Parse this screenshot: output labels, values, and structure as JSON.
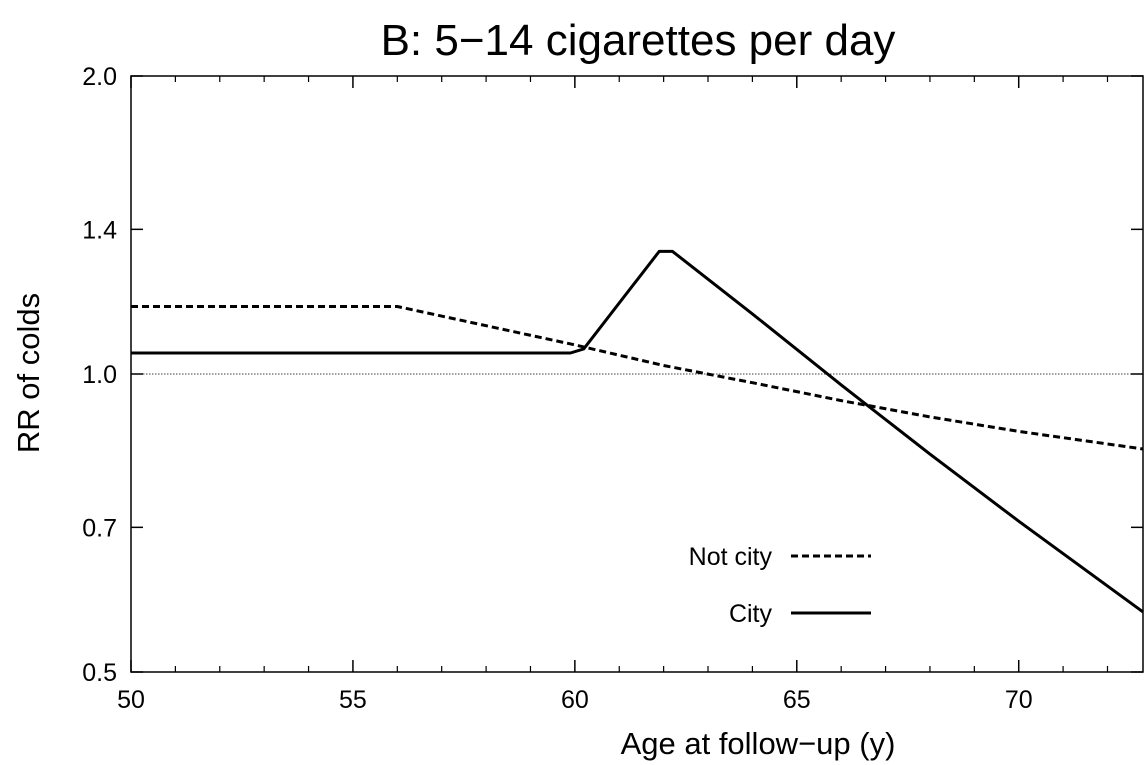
{
  "chart_data": {
    "type": "line",
    "title": "B: 5−14 cigarettes per day",
    "xlabel": "Age at follow−up (y)",
    "ylabel": "RR of colds",
    "xlim": [
      50,
      72.8
    ],
    "ylim": [
      0.5,
      2.0
    ],
    "y_scale": "log",
    "x_ticks": [
      50,
      55,
      60,
      65,
      70
    ],
    "x_tick_labels": [
      "50",
      "55",
      "60",
      "65",
      "70"
    ],
    "y_ticks": [
      0.5,
      0.7,
      1.0,
      1.4,
      2.0
    ],
    "y_tick_labels": [
      "0.5",
      "0.7",
      "1.0",
      "1.4",
      "2.0"
    ],
    "reference_line": 1.0,
    "grid": false,
    "legend_position": "bottom-right",
    "series": [
      {
        "name": "Not city",
        "style": "dashed",
        "x": [
          50,
          56,
          60,
          62,
          64,
          66,
          68,
          70,
          72.8
        ],
        "y": [
          1.17,
          1.17,
          1.07,
          1.02,
          0.98,
          0.94,
          0.905,
          0.875,
          0.84
        ]
      },
      {
        "name": "City",
        "style": "solid",
        "x": [
          50,
          59.9,
          60.2,
          61.9,
          62.2,
          64,
          66,
          68,
          70,
          72.8
        ],
        "y": [
          1.05,
          1.05,
          1.06,
          1.33,
          1.33,
          1.15,
          0.975,
          0.83,
          0.71,
          0.575
        ]
      }
    ]
  }
}
